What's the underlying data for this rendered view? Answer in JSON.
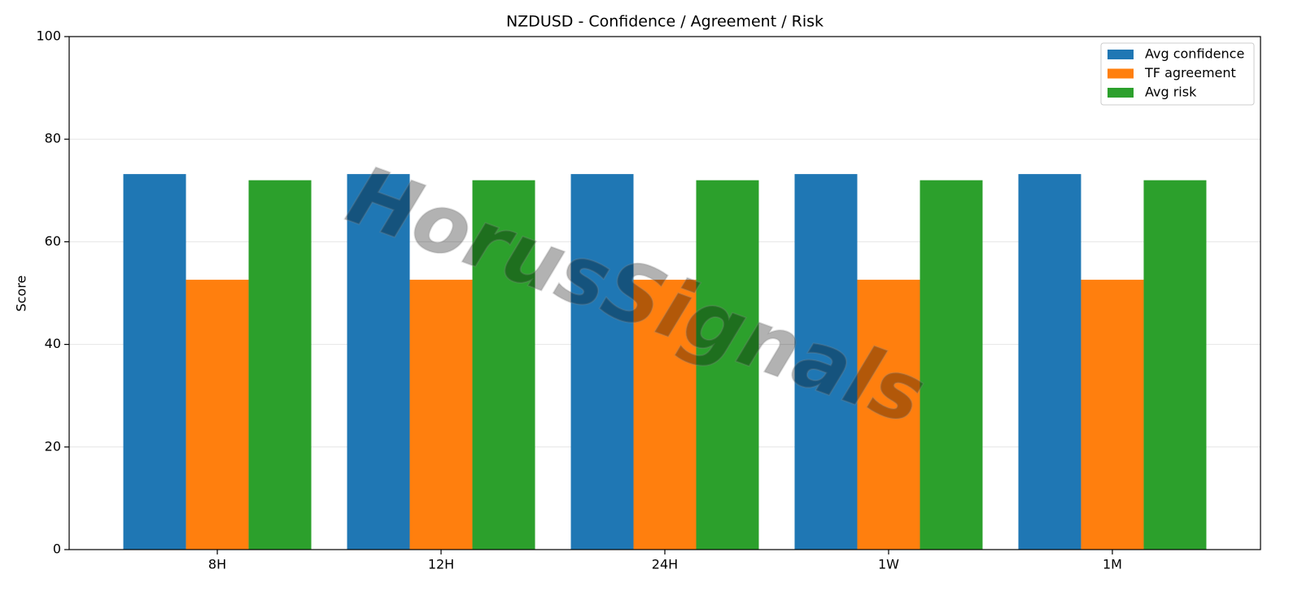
{
  "chart_data": {
    "type": "bar",
    "title": "NZDUSD - Confidence / Agreement / Risk",
    "y_label": "Score",
    "categories": [
      "8H",
      "12H",
      "24H",
      "1W",
      "1M"
    ],
    "series": [
      {
        "name": "Avg confidence",
        "color": "#1f77b4",
        "values": [
          73.2,
          73.2,
          73.2,
          73.2,
          73.2
        ]
      },
      {
        "name": "TF agreement",
        "color": "#ff7f0e",
        "values": [
          52.6,
          52.6,
          52.6,
          52.6,
          52.6
        ]
      },
      {
        "name": "Avg risk",
        "color": "#2ca02c",
        "values": [
          72,
          72,
          72,
          72,
          72
        ]
      }
    ],
    "ylim": [
      0,
      100
    ],
    "yticks": [
      0,
      20,
      40,
      60,
      80,
      100
    ],
    "grid": true,
    "legend": "upper right",
    "watermark": "HorusSignals"
  }
}
